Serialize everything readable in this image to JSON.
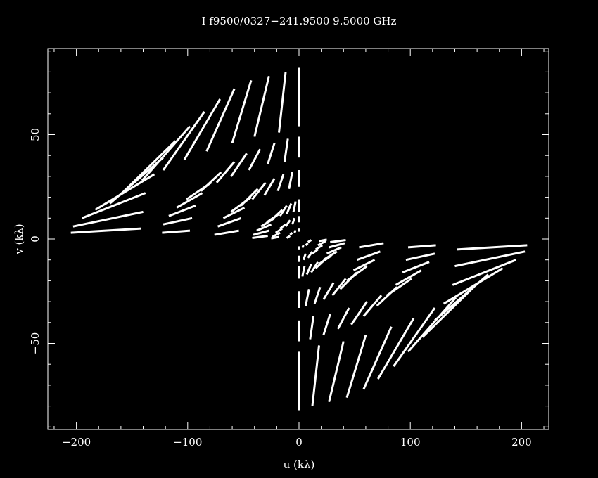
{
  "chart_data": {
    "type": "scatter",
    "title": "I f9500/0327−241.9500  9.5000 GHz",
    "xlabel": "u (kλ)",
    "ylabel": "v (kλ)",
    "xlim": [
      -225,
      225
    ],
    "ylim": [
      -92,
      92
    ],
    "x_ticks": [
      -200,
      -100,
      0,
      100,
      200
    ],
    "x_tick_labels": [
      "−200",
      "−100",
      "0",
      "100",
      "200"
    ],
    "y_ticks": [
      -50,
      0,
      50
    ],
    "y_tick_labels": [
      "−50",
      "0",
      "50"
    ],
    "x_minor_step": 20,
    "y_minor_step": 10,
    "background": "#000000",
    "foreground": "#ffffff",
    "grid": false,
    "baseline_radii_klambda": [
      4.6,
      8,
      11.5,
      15,
      19,
      24,
      42,
      59,
      82
    ],
    "description": "uv-coverage: radial track segments that fan out from the v-axis (+v) to near the u-axis (−u), mirrored through the origin",
    "segments": [
      {
        "radius": 82,
        "arms": [
          {
            "u": [
              0,
              0
            ],
            "v": [
              54,
              82
            ]
          },
          {
            "u": [
              -18,
              -12
            ],
            "v": [
              51,
              80
            ]
          },
          {
            "u": [
              -40,
              -27
            ],
            "v": [
              49,
              78
            ]
          },
          {
            "u": [
              -60,
              -43
            ],
            "v": [
              46,
              76
            ]
          },
          {
            "u": [
              -83,
              -58
            ],
            "v": [
              42,
              72
            ]
          },
          {
            "u": [
              -103,
              -71
            ],
            "v": [
              38,
              67
            ]
          },
          {
            "u": [
              -122,
              -85
            ],
            "v": [
              33,
              61
            ]
          },
          {
            "u": [
              -141,
              -98
            ],
            "v": [
              28,
              54
            ]
          },
          {
            "u": [
              -157,
              -111
            ],
            "v": [
              23,
              47
            ]
          },
          {
            "u": [
              -170,
              -122
            ],
            "v": [
              17,
              39
            ]
          },
          {
            "u": [
              -183,
              -130
            ],
            "v": [
              14,
              31
            ]
          },
          {
            "u": [
              -195,
              -138
            ],
            "v": [
              10,
              22
            ]
          },
          {
            "u": [
              -203,
              -140
            ],
            "v": [
              6,
              13
            ]
          },
          {
            "u": [
              -205,
              -142
            ],
            "v": [
              3,
              5
            ]
          }
        ]
      },
      {
        "radius": 59,
        "arms": [
          {
            "u": [
              0,
              0
            ],
            "v": [
              39,
              49
            ]
          },
          {
            "u": [
              -13,
              -10
            ],
            "v": [
              37,
              48
            ]
          },
          {
            "u": [
              -28,
              -22
            ],
            "v": [
              36,
              46
            ]
          },
          {
            "u": [
              -45,
              -35
            ],
            "v": [
              33,
              43
            ]
          },
          {
            "u": [
              -61,
              -47
            ],
            "v": [
              30,
              41
            ]
          },
          {
            "u": [
              -74,
              -58
            ],
            "v": [
              27,
              37
            ]
          },
          {
            "u": [
              -88,
              -70
            ],
            "v": [
              23,
              32
            ]
          },
          {
            "u": [
              -101,
              -79
            ],
            "v": [
              19,
              27
            ]
          },
          {
            "u": [
              -110,
              -87
            ],
            "v": [
              15,
              22
            ]
          },
          {
            "u": [
              -117,
              -93
            ],
            "v": [
              11,
              16
            ]
          },
          {
            "u": [
              -122,
              -96
            ],
            "v": [
              7,
              10
            ]
          },
          {
            "u": [
              -123,
              -98
            ],
            "v": [
              3,
              4
            ]
          }
        ]
      },
      {
        "radius": 42,
        "arms": [
          {
            "u": [
              0,
              0
            ],
            "v": [
              25,
              33
            ]
          },
          {
            "u": [
              -9,
              -6
            ],
            "v": [
              24,
              32
            ]
          },
          {
            "u": [
              -19,
              -14
            ],
            "v": [
              23,
              31
            ]
          },
          {
            "u": [
              -31,
              -22
            ],
            "v": [
              21,
              29
            ]
          },
          {
            "u": [
              -42,
              -30
            ],
            "v": [
              19,
              27
            ]
          },
          {
            "u": [
              -52,
              -37
            ],
            "v": [
              16,
              24
            ]
          },
          {
            "u": [
              -61,
              -43
            ],
            "v": [
              13,
              20
            ]
          },
          {
            "u": [
              -68,
              -49
            ],
            "v": [
              10,
              15
            ]
          },
          {
            "u": [
              -73,
              -52
            ],
            "v": [
              6,
              10
            ]
          },
          {
            "u": [
              -76,
              -54
            ],
            "v": [
              2,
              4
            ]
          }
        ]
      },
      {
        "radius": 24,
        "arms": [
          {
            "u": [
              0,
              0
            ],
            "v": [
              13,
              19
            ]
          },
          {
            "u": [
              -5,
              -3
            ],
            "v": [
              13,
              18
            ]
          },
          {
            "u": [
              -11,
              -7
            ],
            "v": [
              12,
              17
            ]
          },
          {
            "u": [
              -17,
              -11
            ],
            "v": [
              11,
              16
            ]
          },
          {
            "u": [
              -23,
              -15
            ],
            "v": [
              10,
              14
            ]
          },
          {
            "u": [
              -29,
              -18
            ],
            "v": [
              8,
              12
            ]
          },
          {
            "u": [
              -34,
              -22
            ],
            "v": [
              6,
              10
            ]
          },
          {
            "u": [
              -38,
              -25
            ],
            "v": [
              4,
              7
            ]
          },
          {
            "u": [
              -41,
              -27
            ],
            "v": [
              2,
              4
            ]
          },
          {
            "u": [
              -42,
              -28
            ],
            "v": [
              0.5,
              1.5
            ]
          }
        ]
      },
      {
        "radius": 15,
        "arms": [
          {
            "u": [
              0,
              0
            ],
            "v": [
              8,
              11
            ]
          },
          {
            "u": [
              -6,
              -4
            ],
            "v": [
              7,
              10
            ]
          },
          {
            "u": [
              -12,
              -8
            ],
            "v": [
              6,
              9
            ]
          },
          {
            "u": [
              -17,
              -12
            ],
            "v": [
              5,
              7
            ]
          },
          {
            "u": [
              -21,
              -15
            ],
            "v": [
              3,
              5
            ]
          },
          {
            "u": [
              -24,
              -17
            ],
            "v": [
              1,
              3
            ]
          },
          {
            "u": [
              -25,
              -18
            ],
            "v": [
              0.3,
              1
            ]
          }
        ]
      },
      {
        "radius": 4.6,
        "arms": [
          {
            "u": [
              0,
              0
            ],
            "v": [
              3.5,
              5
            ]
          },
          {
            "u": [
              -4,
              -3
            ],
            "v": [
              3,
              4.2
            ]
          },
          {
            "u": [
              -8,
              -6
            ],
            "v": [
              2,
              3
            ]
          },
          {
            "u": [
              -11,
              -8
            ],
            "v": [
              0.5,
              1.5
            ]
          }
        ]
      }
    ]
  }
}
